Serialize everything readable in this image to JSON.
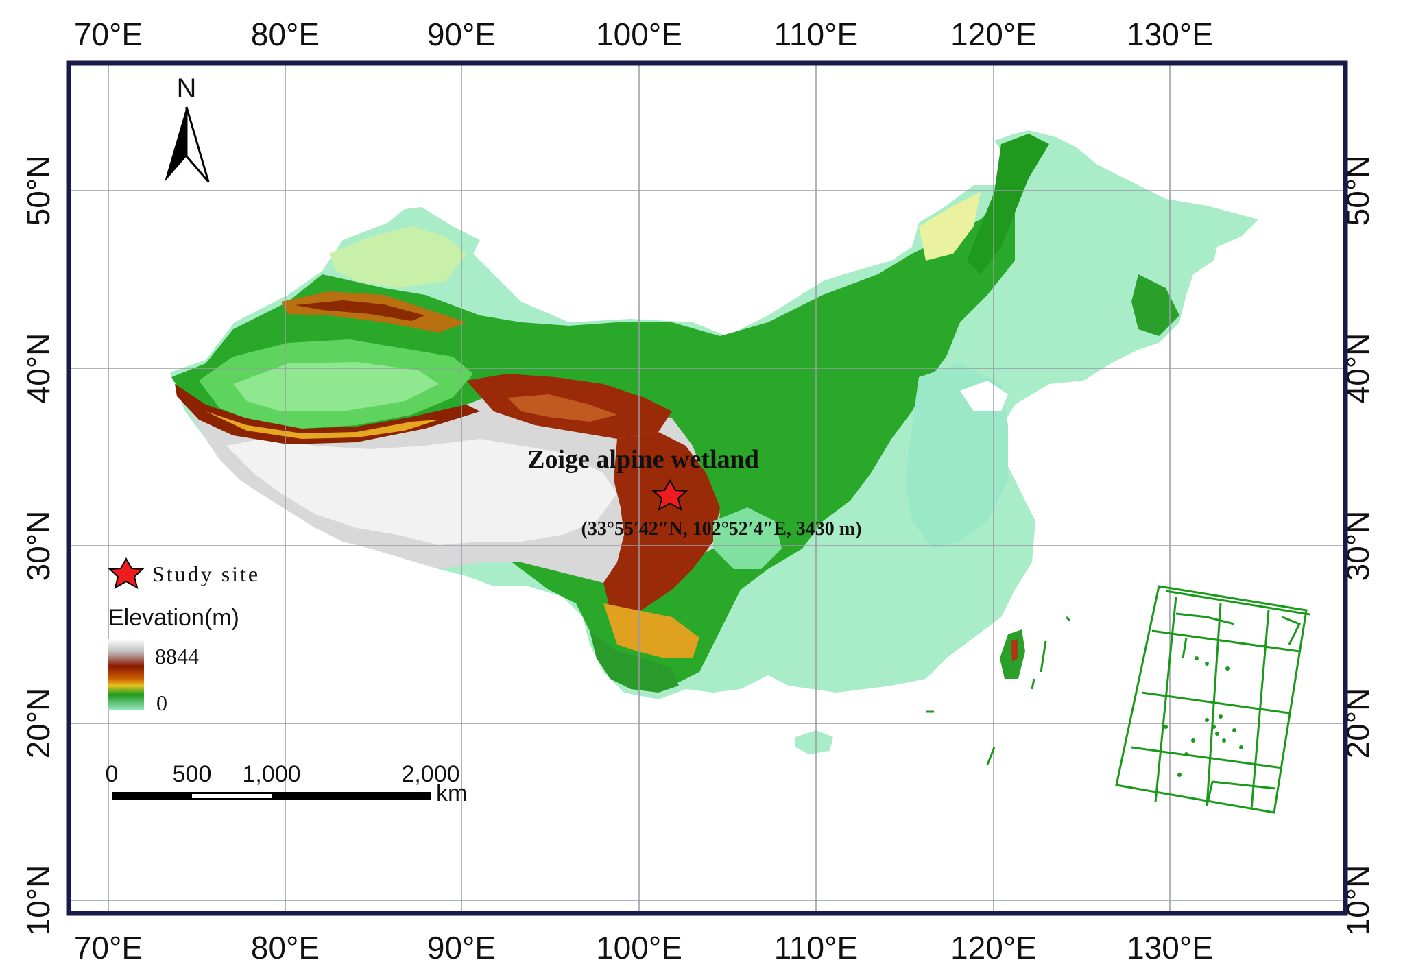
{
  "map": {
    "lon_ticks": [
      "70°E",
      "80°E",
      "90°E",
      "100°E",
      "110°E",
      "120°E",
      "130°E"
    ],
    "lat_ticks": [
      "50°N",
      "40°N",
      "30°N",
      "20°N",
      "10°N"
    ],
    "north_arrow_label": "N",
    "site_name": "Zoige alpine wetland",
    "site_coords": "(33°55′42″N, 102°52′4″E, 3430 m)",
    "legend": {
      "site_label": "Study site",
      "elevation_title": "Elevation(m)",
      "max_label": "8844",
      "min_label": "0",
      "ramp_colors": [
        "#ffffff",
        "#bdbdbd",
        "#8b1a00",
        "#c85a00",
        "#e8c21c",
        "#1f9a1f",
        "#9be8c8"
      ]
    },
    "scale_bar": {
      "labels": [
        "0",
        "500",
        "1,000",
        "2,000"
      ],
      "unit": "km"
    },
    "colors": {
      "frame": "#1a1a4a",
      "grid": "#9a9aa6",
      "star": "#ee1c1c",
      "inset_lines": "#1a9a1a"
    }
  }
}
